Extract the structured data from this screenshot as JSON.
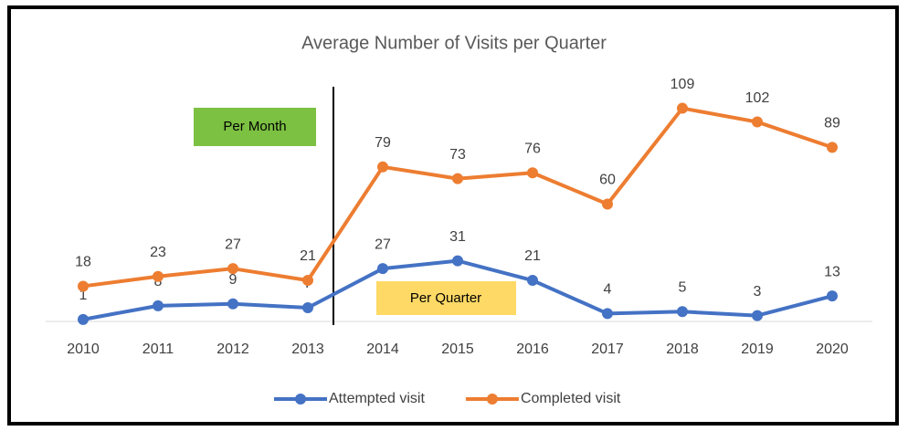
{
  "chart_data": {
    "type": "line",
    "title": "Average Number of Visits per Quarter",
    "categories": [
      "2010",
      "2011",
      "2012",
      "2013",
      "2014",
      "2015",
      "2016",
      "2017",
      "2018",
      "2019",
      "2020"
    ],
    "series": [
      {
        "name": "Attempted visit",
        "color": "#4472c4",
        "values": [
          1,
          8,
          9,
          7,
          27,
          31,
          21,
          4,
          5,
          3,
          13
        ]
      },
      {
        "name": "Completed visit",
        "color": "#ed7d31",
        "values": [
          18,
          23,
          27,
          21,
          79,
          73,
          76,
          60,
          109,
          102,
          89
        ]
      }
    ],
    "ylim": [
      0,
      120
    ],
    "annotations": [
      "Per Month",
      "Per Quarter"
    ],
    "legend": "bottom"
  }
}
